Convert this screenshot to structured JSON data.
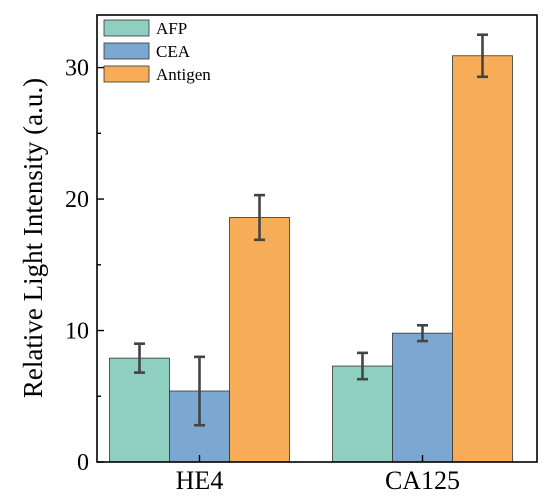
{
  "chart_data": {
    "type": "bar",
    "categories": [
      "HE4",
      "CA125"
    ],
    "series": [
      {
        "name": "AFP",
        "values": [
          7.9,
          7.3
        ],
        "errors": [
          1.1,
          1.0
        ],
        "color": "#8fcfbf"
      },
      {
        "name": "CEA",
        "values": [
          5.4,
          9.8
        ],
        "errors": [
          2.6,
          0.6
        ],
        "color": "#7ba7d1"
      },
      {
        "name": "Antigen",
        "values": [
          18.6,
          30.9
        ],
        "errors": [
          1.7,
          1.6
        ],
        "color": "#f7ad57"
      }
    ],
    "title": "",
    "xlabel": "",
    "ylabel": "Relative Light Intensity (a.u.)",
    "ylim": [
      0,
      34
    ],
    "yticks": [
      0,
      10,
      20,
      30
    ],
    "grid": false,
    "legend_position": "top-left"
  }
}
